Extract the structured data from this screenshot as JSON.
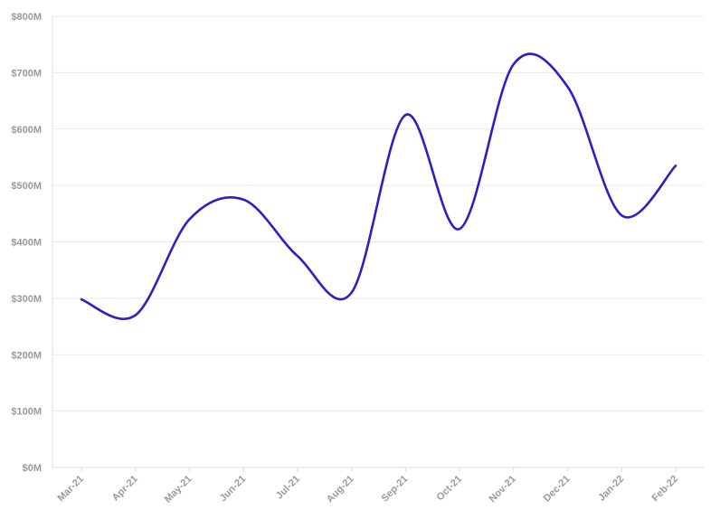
{
  "chart_data": {
    "type": "line",
    "title": "",
    "xlabel": "",
    "ylabel": "",
    "categories": [
      "Mar-21",
      "Apr-21",
      "May-21",
      "Jun-21",
      "Jul-21",
      "Aug-21",
      "Sep-21",
      "Oct-21",
      "Nov-21",
      "Dec-21",
      "Jan-22",
      "Feb-22"
    ],
    "y_ticks": [
      0,
      100,
      200,
      300,
      400,
      500,
      600,
      700,
      800
    ],
    "y_tick_labels": [
      "$0M",
      "$100M",
      "$200M",
      "$300M",
      "$400M",
      "$500M",
      "$600M",
      "$700M",
      "$800M"
    ],
    "ylim": [
      0,
      800
    ],
    "y_unit": "USD millions",
    "grid": true,
    "legend": "none",
    "series": [
      {
        "color": "#2b1fc6",
        "points": [
          {
            "x": "Mar-21",
            "y": 298
          },
          {
            "x": "Apr-21",
            "y": 270
          },
          {
            "x": "May-21",
            "y": 440
          },
          {
            "x": "Jun-21",
            "y": 475
          },
          {
            "x": "Jul-21",
            "y": 375
          },
          {
            "x": "Aug-21",
            "y": 310
          },
          {
            "x": "Sep-21",
            "y": 625
          },
          {
            "x": "Oct-21",
            "y": 423
          },
          {
            "x": "Nov-21",
            "y": 715
          },
          {
            "x": "Dec-21",
            "y": 675
          },
          {
            "x": "Jan-22",
            "y": 447
          },
          {
            "x": "Feb-22",
            "y": 535
          }
        ]
      }
    ]
  },
  "colors": {
    "gridline": "#e9e9e9",
    "axis": "#dcdcdc",
    "tick_label": "#9a9a9a"
  }
}
